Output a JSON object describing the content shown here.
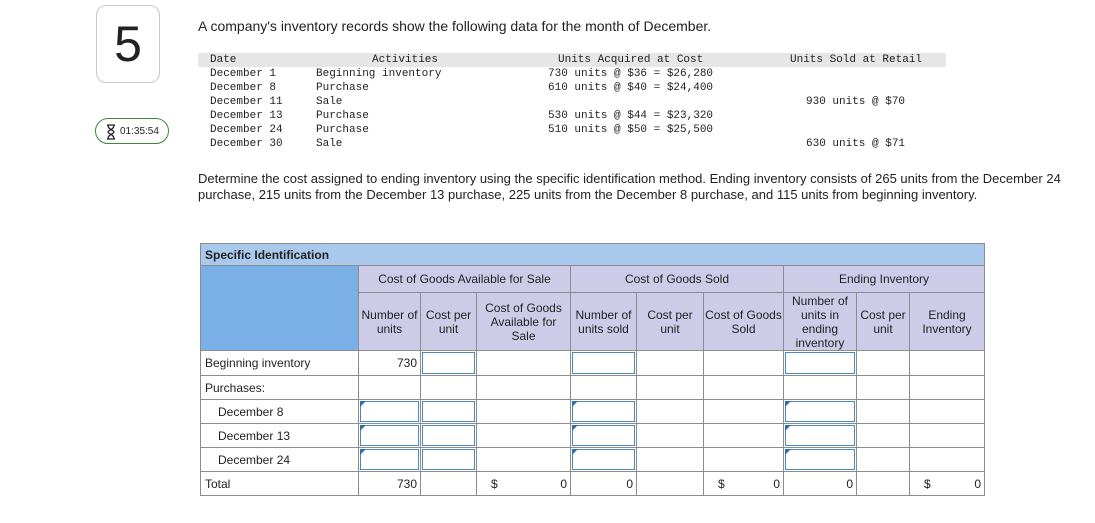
{
  "question": {
    "number": "5",
    "timer": "01:35:54"
  },
  "intro": "A company's inventory records show the following data for the month of December.",
  "records": {
    "headers": {
      "date": "Date",
      "activities": "Activities",
      "acquired": "Units Acquired at Cost",
      "sold": "Units Sold at Retail"
    },
    "rows": [
      {
        "date": "December 1",
        "activity": "Beginning inventory",
        "acquired": "730 units @ $36 = $26,280",
        "sold": ""
      },
      {
        "date": "December 8",
        "activity": "Purchase",
        "acquired": "610 units @ $40 = $24,400",
        "sold": ""
      },
      {
        "date": "December 11",
        "activity": "Sale",
        "acquired": "",
        "sold": "930 units @ $70"
      },
      {
        "date": "December 13",
        "activity": "Purchase",
        "acquired": "530 units @ $44 = $23,320",
        "sold": ""
      },
      {
        "date": "December 24",
        "activity": "Purchase",
        "acquired": "510 units @ $50 = $25,500",
        "sold": ""
      },
      {
        "date": "December 30",
        "activity": "Sale",
        "acquired": "",
        "sold": "630 units @ $71"
      }
    ]
  },
  "task": "Determine the cost assigned to ending inventory using the specific identification method. Ending inventory consists of 265 units from the December 24 purchase, 215 units from the December 13 purchase, 225 units from the December 8 purchase, and 115 units from beginning inventory.",
  "worksheet": {
    "title": "Specific Identification",
    "groups": {
      "cogas": "Cost of Goods Available for Sale",
      "cogs": "Cost of Goods Sold",
      "ending": "Ending Inventory"
    },
    "columns": {
      "num_units": "Number of units",
      "cost_per_unit": "Cost per unit",
      "cogas": "Cost of Goods Available for Sale",
      "units_sold": "Number of units sold",
      "cost_per_unit2": "Cost per unit",
      "cogs": "Cost of Goods Sold",
      "units_ending": "Number of units in ending inventory",
      "cost_per_unit3": "Cost per unit",
      "ending_inv": "Ending Inventory"
    },
    "rows": {
      "beginning": "Beginning inventory",
      "purchases": "Purchases:",
      "dec8": "December 8",
      "dec13": "December 13",
      "dec24": "December 24",
      "total": "Total"
    },
    "values": {
      "beginning_units": "730",
      "total_units": "730",
      "total_cogas_symbol": "$",
      "total_cogas": "0",
      "total_units_sold": "0",
      "total_cogs_symbol": "$",
      "total_cogs": "0",
      "total_units_ending": "0",
      "total_ending_symbol": "$",
      "total_ending": "0"
    }
  }
}
